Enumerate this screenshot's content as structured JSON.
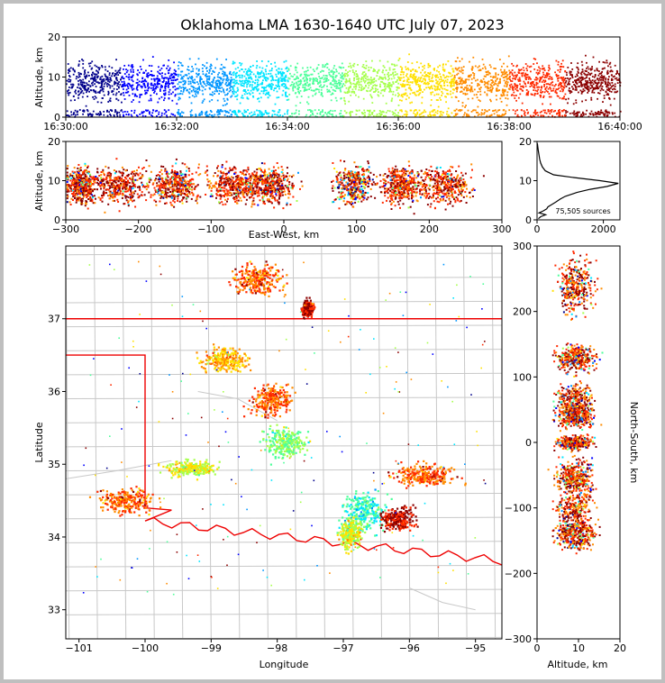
{
  "title": "Oklahoma LMA 1630-1640 UTC July 07, 2023",
  "colors": {
    "colormap": [
      "#00008b",
      "#0000ff",
      "#0096ff",
      "#00e5ff",
      "#4dff9a",
      "#a6ff4d",
      "#ffe000",
      "#ff8c00",
      "#ff2a00",
      "#8b0000"
    ],
    "state_line": "#ee0000",
    "county_line": "#c8c8c8",
    "histogram_line": "#000000"
  },
  "chart_data": [
    {
      "id": "time-height",
      "type": "scatter",
      "ylabel": "Altitude, km",
      "xlim": [
        "16:30:00",
        "16:40:00"
      ],
      "ylim": [
        0,
        20
      ],
      "x_ticks": [
        "16:30:00",
        "16:32:00",
        "16:34:00",
        "16:36:00",
        "16:38:00",
        "16:40:00"
      ],
      "y_ticks": [
        0,
        10,
        20
      ],
      "color_by": "time"
    },
    {
      "id": "ew-height",
      "type": "scatter",
      "xlabel": "East-West, km",
      "ylabel": "Altitude, km",
      "xlim": [
        -300,
        300
      ],
      "ylim": [
        0,
        20
      ],
      "x_ticks": [
        -300,
        -200,
        -100,
        0,
        100,
        200,
        300
      ],
      "y_ticks": [
        0,
        10,
        20
      ],
      "color_by": "time"
    },
    {
      "id": "altitude-histogram",
      "type": "line",
      "annotation": "75,505 sources",
      "xlim": [
        0,
        2500
      ],
      "ylim": [
        0,
        20
      ],
      "x_ticks": [
        0,
        2000
      ],
      "y_ticks": [
        0,
        10,
        20
      ],
      "profile": [
        {
          "alt": 0.3,
          "count": 40
        },
        {
          "alt": 0.8,
          "count": 110
        },
        {
          "alt": 1.3,
          "count": 260
        },
        {
          "alt": 1.8,
          "count": 60
        },
        {
          "alt": 2.3,
          "count": 190
        },
        {
          "alt": 2.8,
          "count": 290
        },
        {
          "alt": 3.3,
          "count": 330
        },
        {
          "alt": 3.8,
          "count": 420
        },
        {
          "alt": 4.5,
          "count": 560
        },
        {
          "alt": 5.3,
          "count": 700
        },
        {
          "alt": 6.0,
          "count": 850
        },
        {
          "alt": 7.0,
          "count": 1200
        },
        {
          "alt": 7.8,
          "count": 1600
        },
        {
          "alt": 8.5,
          "count": 2100
        },
        {
          "alt": 9.3,
          "count": 2450
        },
        {
          "alt": 10.0,
          "count": 1900
        },
        {
          "alt": 10.8,
          "count": 1100
        },
        {
          "alt": 11.5,
          "count": 500
        },
        {
          "alt": 12.5,
          "count": 250
        },
        {
          "alt": 13.5,
          "count": 160
        },
        {
          "alt": 14.5,
          "count": 110
        },
        {
          "alt": 15.5,
          "count": 80
        },
        {
          "alt": 16.5,
          "count": 60
        },
        {
          "alt": 17.5,
          "count": 40
        },
        {
          "alt": 18.5,
          "count": 25
        },
        {
          "alt": 19.5,
          "count": 10
        }
      ]
    },
    {
      "id": "plan-view",
      "type": "scatter",
      "xlabel": "Longitude",
      "ylabel": "Latitude",
      "xlim": [
        -101.2,
        -94.6
      ],
      "ylim": [
        32.6,
        38.0
      ],
      "x_ticks": [
        -101,
        -100,
        -99,
        -98,
        -97,
        -96,
        -95
      ],
      "y_ticks": [
        33,
        34,
        35,
        36,
        37
      ],
      "color_by": "time",
      "clusters": [
        {
          "lon": -98.3,
          "lat": 37.55,
          "spread_lon": 0.35,
          "spread_lat": 0.2,
          "level": 8
        },
        {
          "lon": -97.55,
          "lat": 37.15,
          "spread_lon": 0.08,
          "spread_lat": 0.1,
          "level": 9
        },
        {
          "lon": -98.8,
          "lat": 36.45,
          "spread_lon": 0.3,
          "spread_lat": 0.15,
          "level": 7
        },
        {
          "lon": -98.1,
          "lat": 35.9,
          "spread_lon": 0.3,
          "spread_lat": 0.2,
          "level": 8
        },
        {
          "lon": -97.9,
          "lat": 35.3,
          "spread_lon": 0.3,
          "spread_lat": 0.2,
          "level": 5
        },
        {
          "lon": -100.3,
          "lat": 34.5,
          "spread_lon": 0.4,
          "spread_lat": 0.15,
          "level": 8
        },
        {
          "lon": -99.3,
          "lat": 34.95,
          "spread_lon": 0.4,
          "spread_lat": 0.1,
          "level": 6
        },
        {
          "lon": -95.8,
          "lat": 34.85,
          "spread_lon": 0.45,
          "spread_lat": 0.15,
          "level": 8
        },
        {
          "lon": -96.7,
          "lat": 34.35,
          "spread_lon": 0.3,
          "spread_lat": 0.25,
          "level": 4
        },
        {
          "lon": -96.9,
          "lat": 34.05,
          "spread_lon": 0.15,
          "spread_lat": 0.2,
          "level": 6
        },
        {
          "lon": -96.2,
          "lat": 34.25,
          "spread_lon": 0.25,
          "spread_lat": 0.15,
          "level": 9
        }
      ]
    },
    {
      "id": "height-ns",
      "type": "scatter",
      "xlabel": "Altitude, km",
      "ylabel": "North-South, km",
      "xlim": [
        0,
        20
      ],
      "ylim": [
        -300,
        300
      ],
      "x_ticks": [
        0,
        10,
        20
      ],
      "y_ticks": [
        -300,
        -200,
        -100,
        0,
        100,
        200,
        300
      ],
      "color_by": "time"
    }
  ]
}
